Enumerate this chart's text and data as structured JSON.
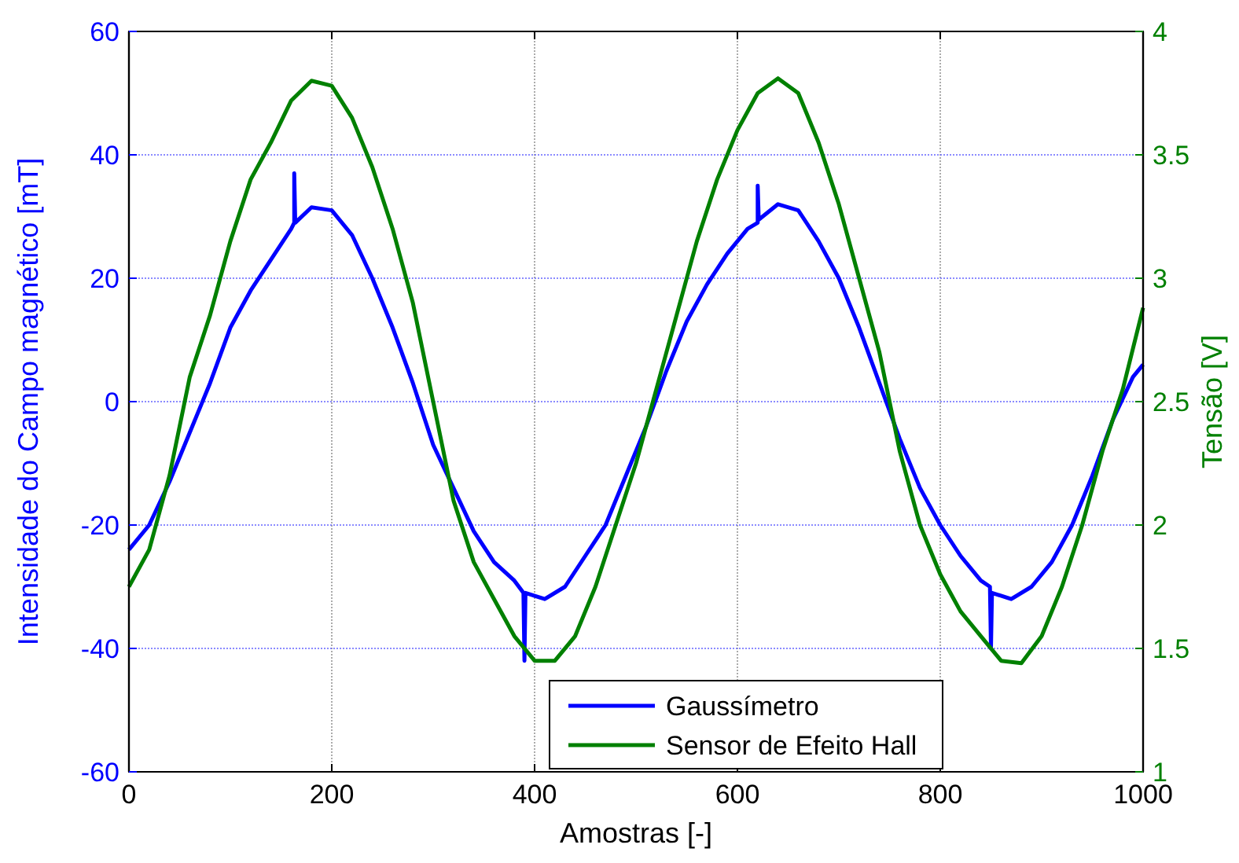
{
  "chart_data": {
    "type": "line",
    "xlabel": "Amostras [-]",
    "ylabel": "Intensidade do Campo magnético [mT]",
    "y2label": "Tensão [V]",
    "xlim": [
      0,
      1000
    ],
    "xticks": [
      0,
      200,
      400,
      600,
      800,
      1000
    ],
    "ylim": [
      -60,
      60
    ],
    "yticks": [
      -60,
      -40,
      -20,
      0,
      20,
      40,
      60
    ],
    "y2lim": [
      1,
      4
    ],
    "y2ticks": [
      1,
      1.5,
      2,
      2.5,
      3,
      3.5,
      4
    ],
    "grid": true,
    "legend": "bottom",
    "line_style": "solid",
    "marker": "none",
    "series": [
      {
        "name": "Gaussímetro",
        "color": "#0000ff",
        "x": [
          0,
          20,
          40,
          60,
          80,
          100,
          120,
          140,
          160,
          163,
          163,
          164,
          180,
          200,
          220,
          240,
          260,
          280,
          300,
          320,
          340,
          360,
          380,
          389,
          390,
          391,
          410,
          430,
          450,
          470,
          490,
          510,
          530,
          550,
          570,
          590,
          610,
          620,
          620,
          621,
          640,
          660,
          680,
          700,
          720,
          740,
          760,
          780,
          800,
          820,
          840,
          849,
          850,
          851,
          870,
          890,
          910,
          930,
          950,
          970,
          990,
          1000
        ],
        "values": [
          -24,
          -20,
          -13,
          -5,
          3,
          12,
          18,
          23,
          28,
          29,
          37,
          29,
          31.5,
          31,
          27,
          20,
          12,
          3,
          -7,
          -14,
          -21,
          -26,
          -29,
          -31,
          -42,
          -31,
          -32,
          -30,
          -25,
          -20,
          -12,
          -4,
          5,
          13,
          19,
          24,
          28,
          29,
          35,
          29.5,
          32,
          31,
          26,
          20,
          12,
          3,
          -6,
          -14,
          -20,
          -25,
          -29,
          -30,
          -40,
          -31,
          -32,
          -30,
          -26,
          -20,
          -12,
          -3,
          4,
          6
        ]
      },
      {
        "name": "Sensor de Efeito Hall",
        "color": "#008000",
        "axis": "y2",
        "x": [
          0,
          20,
          40,
          60,
          80,
          100,
          120,
          140,
          160,
          180,
          200,
          220,
          240,
          260,
          280,
          300,
          320,
          340,
          360,
          380,
          400,
          420,
          440,
          460,
          480,
          500,
          520,
          540,
          560,
          580,
          600,
          620,
          640,
          660,
          680,
          700,
          720,
          740,
          760,
          780,
          800,
          820,
          840,
          860,
          880,
          900,
          920,
          940,
          960,
          980,
          1000
        ],
        "values": [
          1.75,
          1.9,
          2.2,
          2.6,
          2.85,
          3.15,
          3.4,
          3.55,
          3.72,
          3.8,
          3.78,
          3.65,
          3.45,
          3.2,
          2.9,
          2.5,
          2.1,
          1.85,
          1.7,
          1.55,
          1.45,
          1.45,
          1.55,
          1.75,
          2.0,
          2.25,
          2.55,
          2.85,
          3.15,
          3.4,
          3.6,
          3.75,
          3.81,
          3.75,
          3.55,
          3.3,
          3.0,
          2.7,
          2.3,
          2.0,
          1.8,
          1.65,
          1.55,
          1.45,
          1.44,
          1.55,
          1.75,
          2.0,
          2.3,
          2.55,
          2.88
        ]
      }
    ]
  }
}
